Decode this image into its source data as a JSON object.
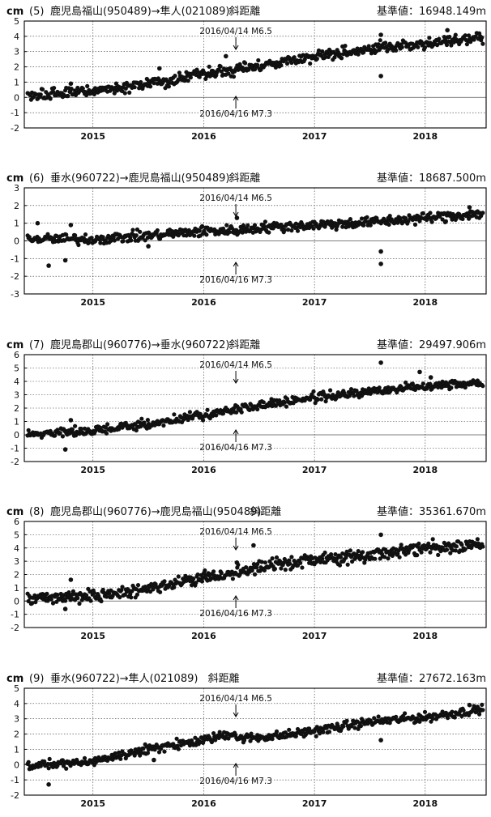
{
  "chart_data": [
    {
      "type": "scatter",
      "unit_label": "cm",
      "title_no": "(5)",
      "title_route": "鹿児島福山(950489)→隼人(021089)",
      "title_kind": "斜距離",
      "base_value": "基準値：16948.149m",
      "ylim": [
        -2,
        5
      ],
      "yticks": [
        "5",
        "4",
        "3",
        "2",
        "1",
        "0",
        "-1",
        "-2"
      ],
      "xlim": [
        2014.38,
        2018.55
      ],
      "xticks": [
        2015,
        2016,
        2017,
        2018
      ],
      "xtick_labels": [
        "2015",
        "2016",
        "2017",
        "2018"
      ],
      "annotation_top": "2016/04/14 M6.5",
      "annotation_bottom": "2016/04/16 M7.3",
      "event_x": 2016.29,
      "trend": [
        [
          2014.4,
          0.1
        ],
        [
          2015.0,
          0.4
        ],
        [
          2015.5,
          0.9
        ],
        [
          2016.0,
          1.5
        ],
        [
          2016.5,
          2.1
        ],
        [
          2017.0,
          2.7
        ],
        [
          2017.5,
          3.2
        ],
        [
          2018.0,
          3.5
        ],
        [
          2018.5,
          3.9
        ]
      ],
      "noise": 0.22,
      "outliers": [
        [
          2014.8,
          0.9
        ],
        [
          2015.6,
          1.9
        ],
        [
          2016.2,
          2.7
        ],
        [
          2017.6,
          4.1
        ],
        [
          2017.6,
          1.4
        ],
        [
          2018.2,
          4.4
        ]
      ],
      "seed": 5
    },
    {
      "type": "scatter",
      "unit_label": "cm",
      "title_no": "(6)",
      "title_route": "垂水(960722)→鹿児島福山(950489)",
      "title_kind": "斜距離",
      "base_value": "基準値：18687.500m",
      "ylim": [
        -3,
        3
      ],
      "yticks": [
        "3",
        "2",
        "1",
        "0",
        "-1",
        "-2",
        "-3"
      ],
      "xlim": [
        2014.38,
        2018.55
      ],
      "xticks": [
        2015,
        2016,
        2017,
        2018
      ],
      "xtick_labels": [
        "2015",
        "2016",
        "2017",
        "2018"
      ],
      "annotation_top": "2016/04/14 M6.5",
      "annotation_bottom": "2016/04/16 M7.3",
      "event_x": 2016.29,
      "trend": [
        [
          2014.4,
          0.1
        ],
        [
          2015.0,
          0.1
        ],
        [
          2015.5,
          0.3
        ],
        [
          2016.0,
          0.55
        ],
        [
          2016.3,
          0.6
        ],
        [
          2016.5,
          0.75
        ],
        [
          2017.0,
          0.9
        ],
        [
          2017.5,
          1.05
        ],
        [
          2018.0,
          1.3
        ],
        [
          2018.5,
          1.55
        ]
      ],
      "noise": 0.18,
      "outliers": [
        [
          2014.5,
          1.0
        ],
        [
          2014.6,
          -1.4
        ],
        [
          2014.75,
          -1.1
        ],
        [
          2014.8,
          0.9
        ],
        [
          2015.5,
          -0.3
        ],
        [
          2016.3,
          1.3
        ],
        [
          2017.6,
          -0.6
        ],
        [
          2017.6,
          -1.3
        ],
        [
          2018.4,
          1.9
        ]
      ],
      "seed": 6
    },
    {
      "type": "scatter",
      "unit_label": "cm",
      "title_no": "(7)",
      "title_route": "鹿児島郡山(960776)→垂水(960722)",
      "title_kind": "斜距離",
      "base_value": "基準値：29497.906m",
      "ylim": [
        -2,
        6
      ],
      "yticks": [
        "6",
        "5",
        "4",
        "3",
        "2",
        "1",
        "0",
        "-1",
        "-2"
      ],
      "xlim": [
        2014.38,
        2018.55
      ],
      "xticks": [
        2015,
        2016,
        2017,
        2018
      ],
      "xtick_labels": [
        "2015",
        "2016",
        "2017",
        "2018"
      ],
      "annotation_top": "2016/04/14 M6.5",
      "annotation_bottom": "2016/04/16 M7.3",
      "event_x": 2016.29,
      "trend": [
        [
          2014.4,
          0.0
        ],
        [
          2015.0,
          0.3
        ],
        [
          2015.5,
          0.8
        ],
        [
          2016.0,
          1.5
        ],
        [
          2016.5,
          2.2
        ],
        [
          2017.0,
          2.8
        ],
        [
          2017.5,
          3.2
        ],
        [
          2018.0,
          3.7
        ],
        [
          2018.5,
          3.9
        ]
      ],
      "noise": 0.2,
      "outliers": [
        [
          2014.75,
          -1.1
        ],
        [
          2014.8,
          1.1
        ],
        [
          2017.6,
          5.4
        ],
        [
          2017.95,
          4.7
        ],
        [
          2018.05,
          4.3
        ]
      ],
      "seed": 7
    },
    {
      "type": "scatter",
      "unit_label": "cm",
      "title_no": "(8)",
      "title_route": "鹿児島郡山(960776)→鹿児島福山(950489)",
      "title_kind": "斜距離",
      "base_value": "基準値：35361.670m",
      "ylim": [
        -2,
        6
      ],
      "yticks": [
        "6",
        "5",
        "4",
        "3",
        "2",
        "1",
        "0",
        "-1",
        "-2"
      ],
      "xlim": [
        2014.38,
        2018.55
      ],
      "xticks": [
        2015,
        2016,
        2017,
        2018
      ],
      "xtick_labels": [
        "2015",
        "2016",
        "2017",
        "2018"
      ],
      "annotation_top": "2016/04/14 M6.5",
      "annotation_bottom": "2016/04/16 M7.3",
      "event_x": 2016.29,
      "trend": [
        [
          2014.4,
          0.1
        ],
        [
          2015.0,
          0.4
        ],
        [
          2015.5,
          1.0
        ],
        [
          2016.0,
          1.7
        ],
        [
          2016.5,
          2.5
        ],
        [
          2017.0,
          3.1
        ],
        [
          2017.5,
          3.5
        ],
        [
          2018.0,
          4.0
        ],
        [
          2018.5,
          4.3
        ]
      ],
      "noise": 0.3,
      "outliers": [
        [
          2014.8,
          1.6
        ],
        [
          2014.75,
          -0.6
        ],
        [
          2016.3,
          2.9
        ],
        [
          2016.45,
          4.2
        ],
        [
          2017.6,
          5.0
        ]
      ],
      "seed": 8
    },
    {
      "type": "scatter",
      "unit_label": "cm",
      "title_no": "(9)",
      "title_route": "垂水(960722)→隼人(021089)",
      "title_kind": "斜距離",
      "base_value": "基準値：27672.163m",
      "ylim": [
        -2,
        5
      ],
      "yticks": [
        "5",
        "4",
        "3",
        "2",
        "1",
        "0",
        "-1",
        "-2"
      ],
      "xlim": [
        2014.38,
        2018.55
      ],
      "xticks": [
        2015,
        2016,
        2017,
        2018
      ],
      "xtick_labels": [
        "2015",
        "2016",
        "2017",
        "2018"
      ],
      "annotation_top": "2016/04/14 M6.5",
      "annotation_bottom": "2016/04/16 M7.3",
      "event_x": 2016.29,
      "trend": [
        [
          2014.4,
          0.0
        ],
        [
          2014.9,
          0.1
        ],
        [
          2015.5,
          1.0
        ],
        [
          2016.0,
          1.6
        ],
        [
          2016.28,
          2.1
        ],
        [
          2016.3,
          1.7
        ],
        [
          2016.7,
          1.9
        ],
        [
          2017.0,
          2.2
        ],
        [
          2017.5,
          2.8
        ],
        [
          2018.0,
          3.1
        ],
        [
          2018.5,
          3.6
        ]
      ],
      "noise": 0.18,
      "outliers": [
        [
          2014.6,
          -1.3
        ],
        [
          2015.55,
          0.3
        ],
        [
          2017.6,
          1.6
        ],
        [
          2018.4,
          3.9
        ]
      ],
      "seed": 9
    }
  ]
}
